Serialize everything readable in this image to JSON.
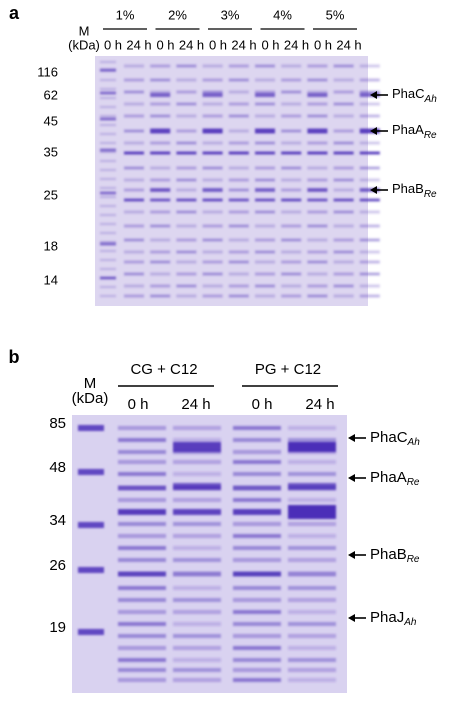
{
  "panel_a": {
    "label": "a",
    "marker_header": "M",
    "marker_unit": "(kDa)",
    "groups": [
      "1%",
      "2%",
      "3%",
      "4%",
      "5%"
    ],
    "times": [
      "0 h",
      "24 h"
    ],
    "markers": [
      116,
      62,
      45,
      35,
      25,
      18,
      14
    ],
    "annotations": [
      {
        "name": "PhaC",
        "subscript": "Ah"
      },
      {
        "name": "PhaA",
        "subscript": "Re"
      },
      {
        "name": "PhaB",
        "subscript": "Re"
      }
    ]
  },
  "panel_b": {
    "label": "b",
    "marker_header": "M",
    "marker_unit": "(kDa)",
    "groups": [
      "CG + C12",
      "PG + C12"
    ],
    "times": [
      "0 h",
      "24 h"
    ],
    "markers": [
      85,
      48,
      34,
      26,
      19
    ],
    "annotations": [
      {
        "name": "PhaC",
        "subscript": "Ah"
      },
      {
        "name": "PhaA",
        "subscript": "Re"
      },
      {
        "name": "PhaB",
        "subscript": "Re"
      },
      {
        "name": "PhaJ",
        "subscript": "Ah"
      }
    ]
  }
}
